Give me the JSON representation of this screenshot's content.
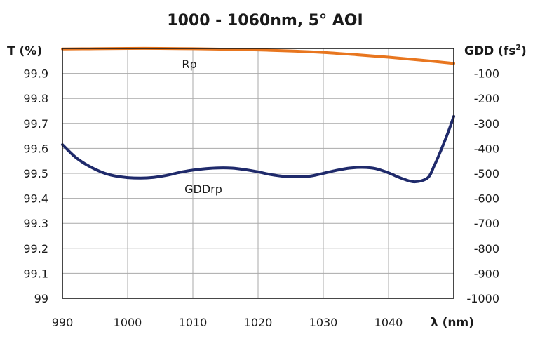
{
  "chart_data": {
    "type": "line",
    "title": "1000 - 1060nm, 5° AOI",
    "xlabel": "λ (nm)",
    "ylabel_left": "T (%)",
    "ylabel_right_main": "GDD (fs",
    "ylabel_right_sup": "2",
    "ylabel_right_end": ")",
    "xlim": [
      990,
      1050
    ],
    "ylim_left": [
      99,
      100
    ],
    "ylim_right": [
      -1000,
      0
    ],
    "x_ticks": [
      "990",
      "1000",
      "1010",
      "1020",
      "1030",
      "1040"
    ],
    "y_left_ticks": [
      "99",
      "99.1",
      "99.2",
      "99.3",
      "99.4",
      "99.5",
      "99.6",
      "99.7",
      "99.8",
      "99.9"
    ],
    "y_right_ticks": [
      "-100",
      "-200",
      "-300",
      "-400",
      "-500",
      "-600",
      "-700",
      "-800",
      "-900",
      "-1000"
    ],
    "grid": true,
    "series": [
      {
        "name": "Rp",
        "axis": "left",
        "color": "#E8761F",
        "x": [
          990,
          995,
          1000,
          1005,
          1010,
          1015,
          1020,
          1025,
          1030,
          1035,
          1040,
          1045,
          1050
        ],
        "y": [
          99.998,
          99.999,
          100.0,
          100.0,
          99.999,
          99.997,
          99.994,
          99.99,
          99.984,
          99.975,
          99.965,
          99.953,
          99.94
        ]
      },
      {
        "name": "GDDrp",
        "axis": "right",
        "color": "#1F2A6B",
        "x": [
          990,
          992,
          994,
          996,
          998,
          1000,
          1002,
          1004,
          1006,
          1008,
          1010,
          1012,
          1014,
          1016,
          1018,
          1020,
          1022,
          1024,
          1026,
          1028,
          1030,
          1032,
          1034,
          1036,
          1038,
          1040,
          1042,
          1044,
          1046,
          1047,
          1048,
          1049,
          1050
        ],
        "y": [
          -385,
          -435,
          -470,
          -495,
          -510,
          -517,
          -519,
          -516,
          -508,
          -496,
          -487,
          -481,
          -478,
          -479,
          -485,
          -494,
          -505,
          -512,
          -514,
          -511,
          -500,
          -488,
          -479,
          -476,
          -481,
          -498,
          -520,
          -534,
          -518,
          -470,
          -410,
          -345,
          -272
        ]
      }
    ]
  }
}
